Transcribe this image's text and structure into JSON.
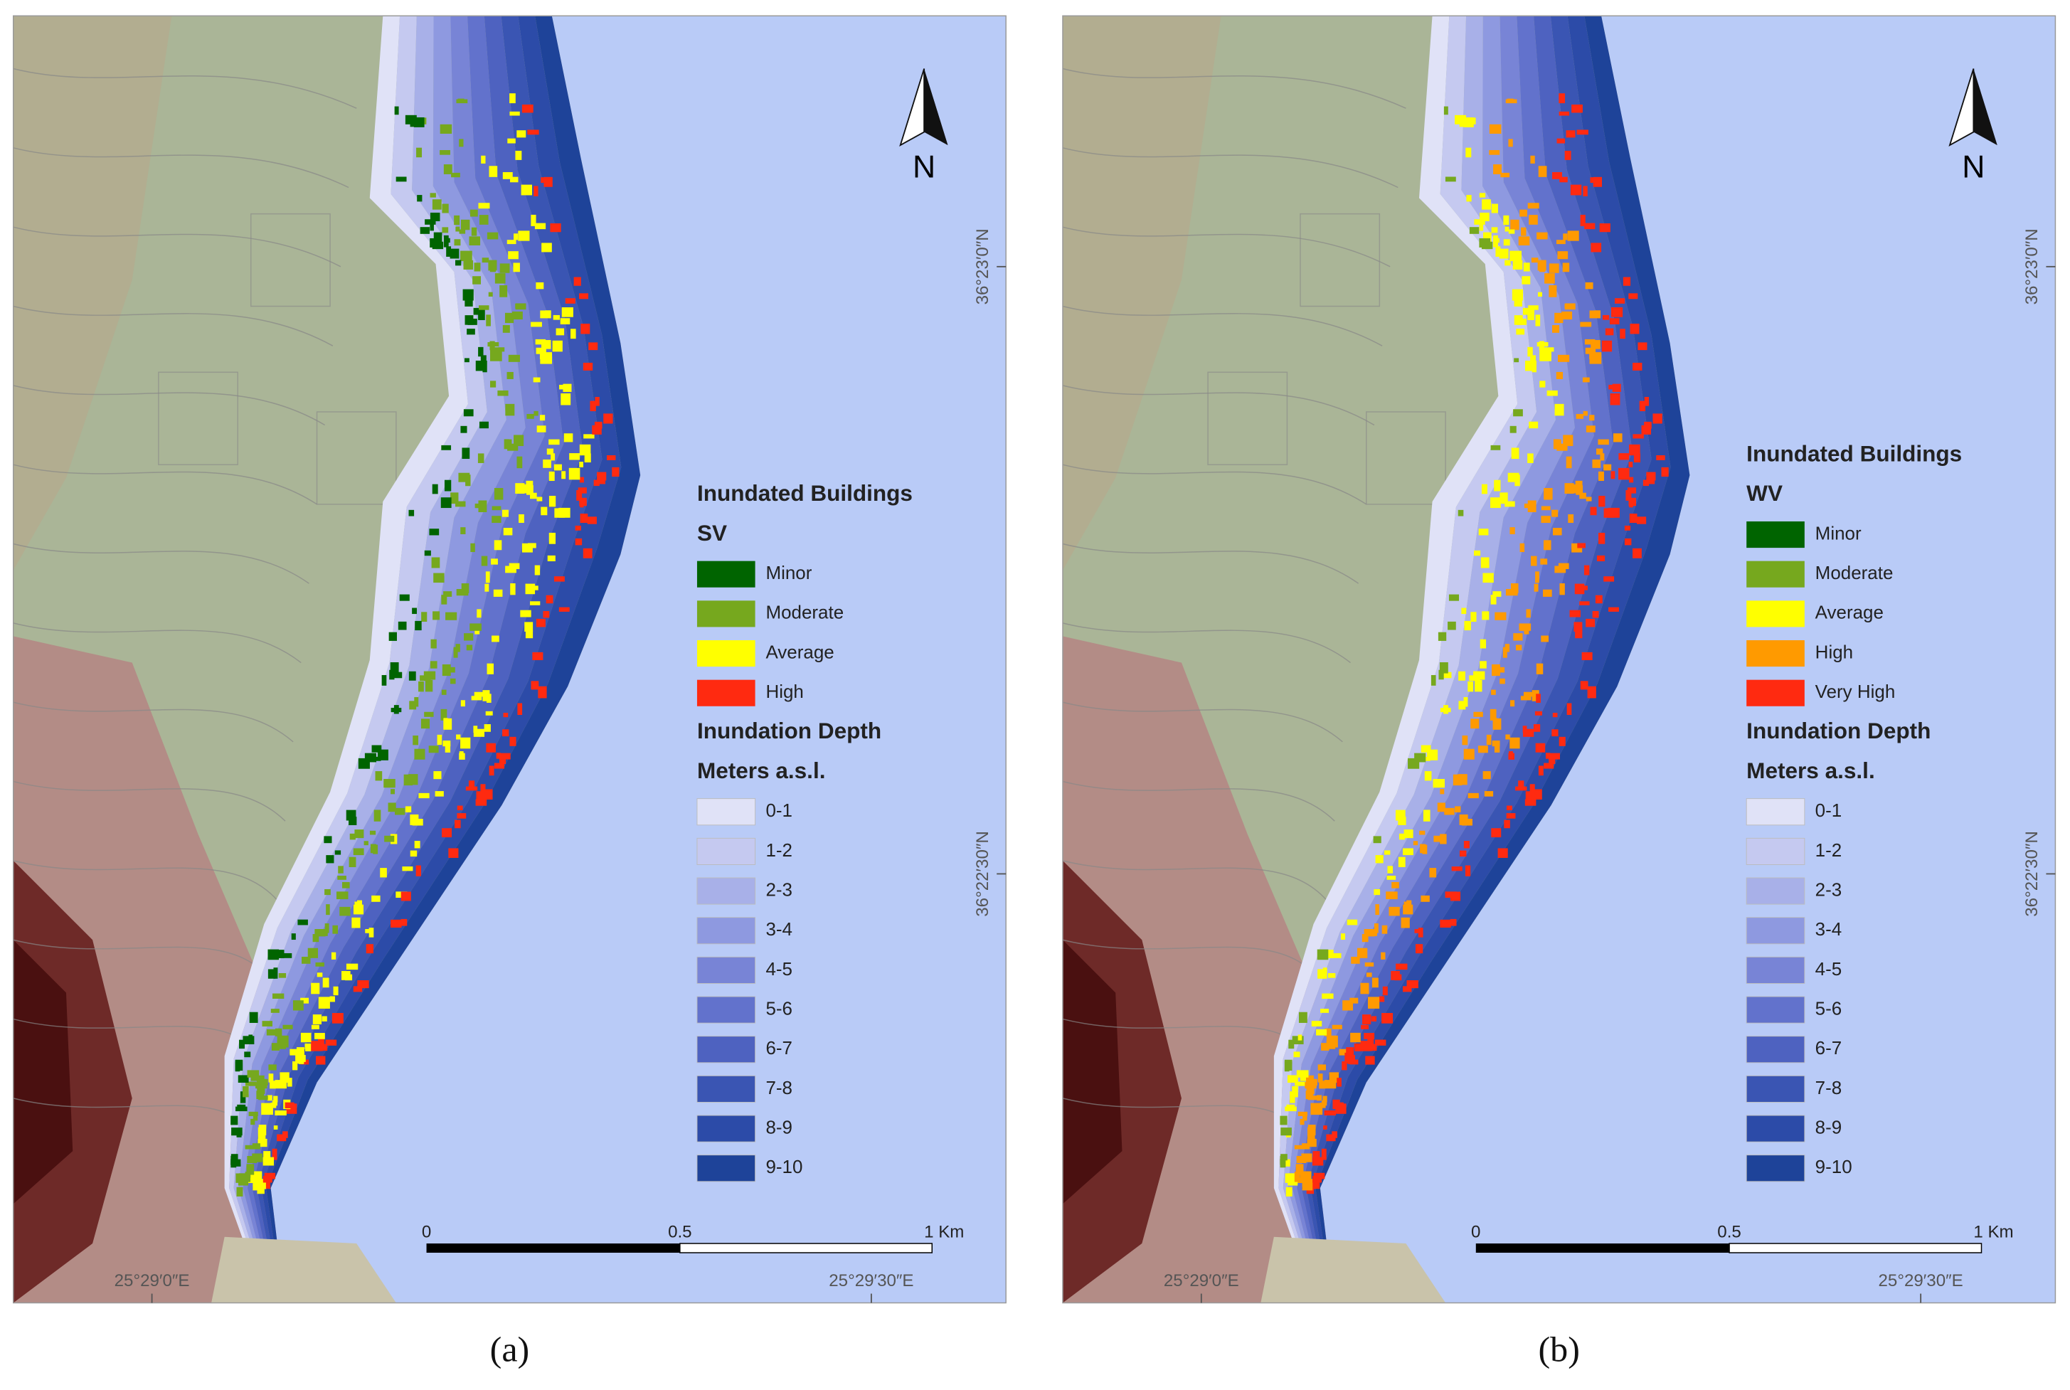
{
  "panels": [
    {
      "caption": "(a)",
      "north": "N",
      "legend": {
        "title": "Inundated Buildings",
        "subtitle": "SV",
        "classes": [
          {
            "label": "Minor",
            "color": "#006400"
          },
          {
            "label": "Moderate",
            "color": "#76a81e"
          },
          {
            "label": "Average",
            "color": "#ffff00"
          },
          {
            "label": "High",
            "color": "#ff2a10"
          }
        ]
      },
      "depth": {
        "title": "Inundation Depth",
        "unit": "Meters a.s.l.",
        "classes": [
          {
            "label": "0-1",
            "color": "#e0e2f7"
          },
          {
            "label": "1-2",
            "color": "#c5c9f0"
          },
          {
            "label": "2-3",
            "color": "#a8b0e8"
          },
          {
            "label": "3-4",
            "color": "#8e99e0"
          },
          {
            "label": "4-5",
            "color": "#7884d6"
          },
          {
            "label": "5-6",
            "color": "#6272cc"
          },
          {
            "label": "6-7",
            "color": "#4e62c0"
          },
          {
            "label": "7-8",
            "color": "#3a55b3"
          },
          {
            "label": "8-9",
            "color": "#2c4ba8"
          },
          {
            "label": "9-10",
            "color": "#1e4399"
          }
        ]
      },
      "scale": [
        "0",
        "0.5",
        "1 Km"
      ],
      "lat": [
        "36°23′0″N",
        "36°22′30″N"
      ],
      "lon": [
        "25°29′0″E",
        "25°29′30″E"
      ]
    },
    {
      "caption": "(b)",
      "north": "N",
      "legend": {
        "title": "Inundated Buildings",
        "subtitle": "WV",
        "classes": [
          {
            "label": "Minor",
            "color": "#006400"
          },
          {
            "label": "Moderate",
            "color": "#76a81e"
          },
          {
            "label": "Average",
            "color": "#ffff00"
          },
          {
            "label": "High",
            "color": "#ff9a00"
          },
          {
            "label": "Very High",
            "color": "#ff2a10"
          }
        ]
      },
      "depth": {
        "title": "Inundation Depth",
        "unit": "Meters a.s.l.",
        "classes": [
          {
            "label": "0-1",
            "color": "#e0e2f7"
          },
          {
            "label": "1-2",
            "color": "#c5c9f0"
          },
          {
            "label": "2-3",
            "color": "#a8b0e8"
          },
          {
            "label": "3-4",
            "color": "#8e99e0"
          },
          {
            "label": "4-5",
            "color": "#7884d6"
          },
          {
            "label": "5-6",
            "color": "#6272cc"
          },
          {
            "label": "6-7",
            "color": "#4e62c0"
          },
          {
            "label": "7-8",
            "color": "#3a55b3"
          },
          {
            "label": "8-9",
            "color": "#2c4ba8"
          },
          {
            "label": "9-10",
            "color": "#1e4399"
          }
        ]
      },
      "scale": [
        "0",
        "0.5",
        "1 Km"
      ],
      "lat": [
        "36°23′0″N",
        "36°22′30″N"
      ],
      "lon": [
        "25°29′0″E",
        "25°29′30″E"
      ]
    }
  ]
}
